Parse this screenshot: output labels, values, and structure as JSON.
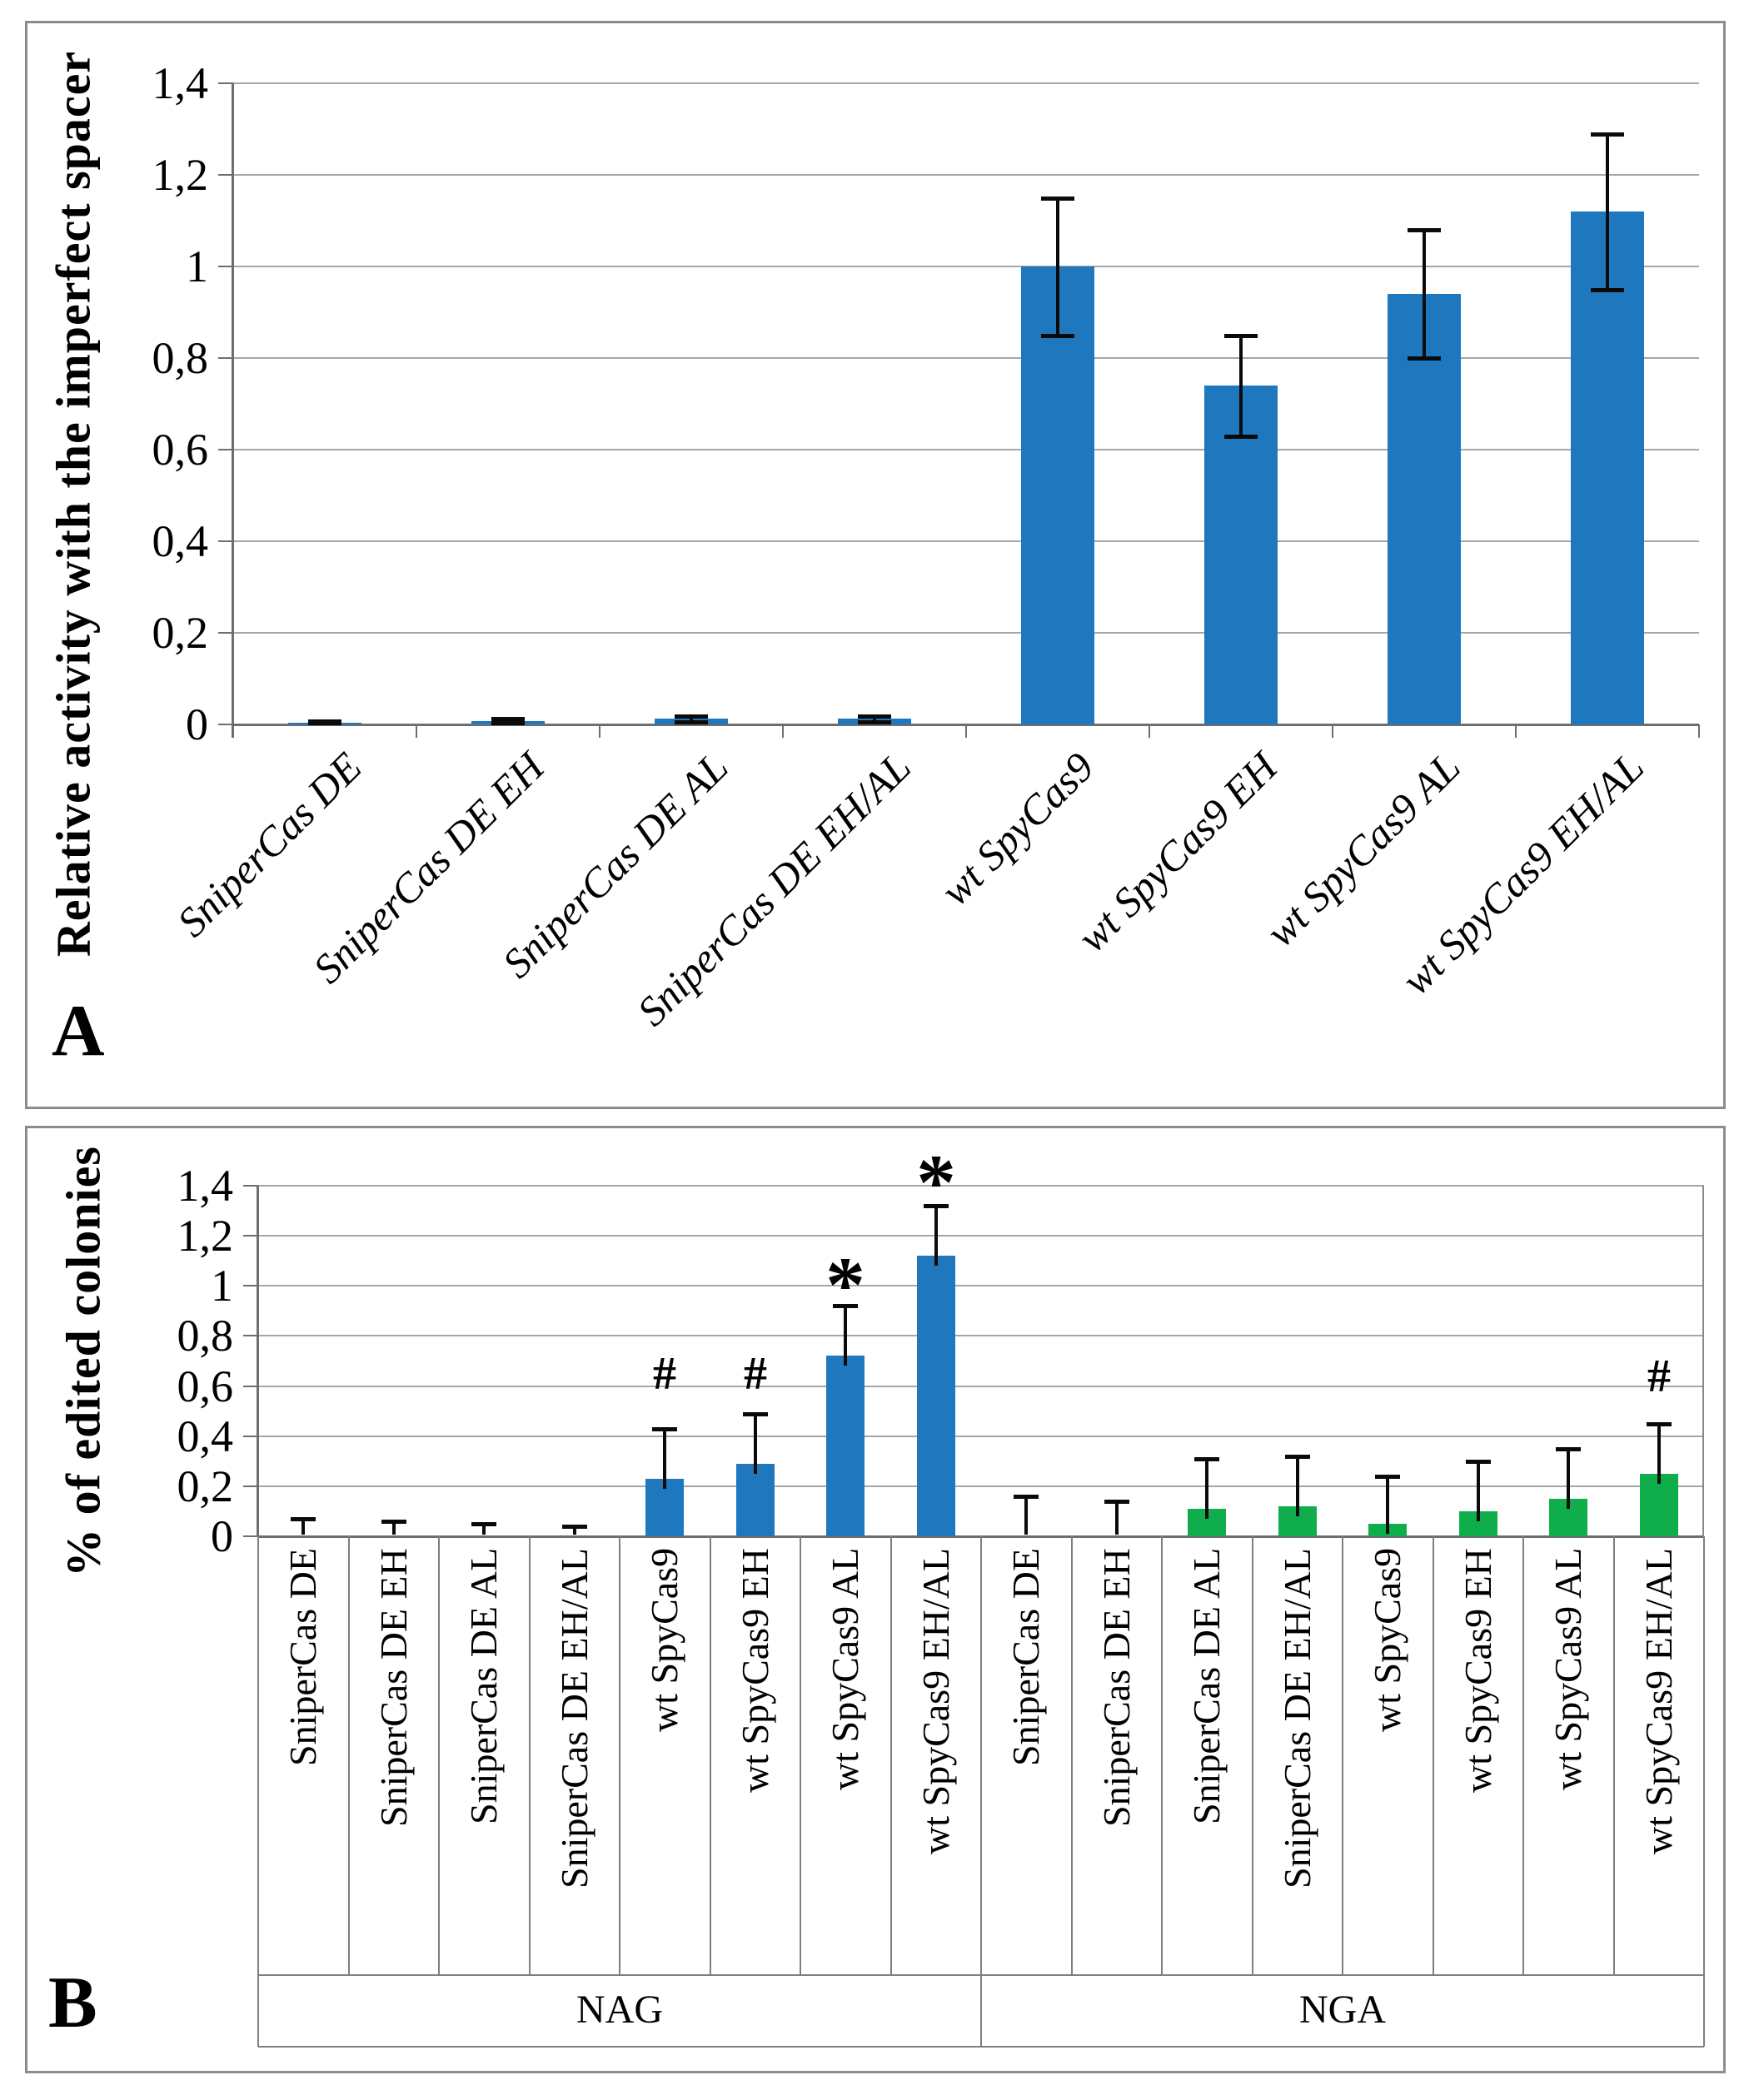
{
  "figure": {
    "panel_a_letter": "A",
    "panel_b_letter": "B"
  },
  "chart_data": [
    {
      "type": "bar",
      "panel_letter": "A",
      "title": "",
      "xlabel": "",
      "ylabel": "Relative activity with the imperfect spacer",
      "ylim": [
        0,
        1.4
      ],
      "ytick_step": 0.2,
      "yticks": [
        "0",
        "0,2",
        "0,4",
        "0,6",
        "0,8",
        "1",
        "1,2",
        "1,4"
      ],
      "grid": true,
      "legend": "none",
      "bar_color": "#1F78BE",
      "error_bar_color": "#000000",
      "category_label_style": "diagonal-italic",
      "categories": [
        "SniperCas DE",
        "SniperCas DE EH",
        "SniperCas DE AL",
        "SniperCas DE EH/AL",
        "wt SpyCas9",
        "wt SpyCas9 EH",
        "wt SpyCas9 AL",
        "wt SpyCas9 EH/AL"
      ],
      "values": [
        0.003,
        0.008,
        0.012,
        0.012,
        1.0,
        0.74,
        0.94,
        1.12
      ],
      "errors": [
        0.004,
        0.005,
        0.006,
        0.006,
        0.15,
        0.11,
        0.14,
        0.17
      ]
    },
    {
      "type": "bar",
      "panel_letter": "B",
      "title": "",
      "xlabel": "",
      "ylabel": "% of edited colonies",
      "ylim": [
        0,
        1.4
      ],
      "ytick_step": 0.2,
      "yticks": [
        "0",
        "0,2",
        "0,4",
        "0,6",
        "0,8",
        "1",
        "1,2",
        "1,4"
      ],
      "grid": true,
      "legend": "none",
      "error_bar_color": "#000000",
      "category_label_style": "vertical",
      "groups": [
        {
          "label": "NAG",
          "bar_color": "#1F78BE",
          "categories": [
            "SniperCas DE",
            "SniperCas DE EH",
            "SniperCas DE AL",
            "SniperCas DE EH/AL",
            "wt SpyCas9",
            "wt SpyCas9 EH",
            "wt SpyCas9 AL",
            "wt SpyCas9 EH/AL"
          ],
          "values": [
            0,
            0,
            0,
            0,
            0.23,
            0.29,
            0.72,
            1.12
          ],
          "errors": [
            0.07,
            0.06,
            0.05,
            0.04,
            0.2,
            0.2,
            0.2,
            0.2
          ]
        },
        {
          "label": "NGA",
          "bar_color": "#0FAD4C",
          "categories": [
            "SniperCas DE",
            "SniperCas DE EH",
            "SniperCas DE AL",
            "SniperCas DE EH/AL",
            "wt SpyCas9",
            "wt SpyCas9 EH",
            "wt SpyCas9 AL",
            "wt SpyCas9 EH/AL"
          ],
          "values": [
            0,
            0,
            0.11,
            0.12,
            0.05,
            0.1,
            0.15,
            0.25
          ],
          "errors": [
            0.16,
            0.14,
            0.2,
            0.2,
            0.19,
            0.2,
            0.2,
            0.2
          ]
        }
      ],
      "annotations": [
        {
          "group": 0,
          "index": 4,
          "symbol": "#",
          "y": 0.67
        },
        {
          "group": 0,
          "index": 5,
          "symbol": "#",
          "y": 0.67
        },
        {
          "group": 0,
          "index": 6,
          "symbol": "*",
          "y": 1.06
        },
        {
          "group": 0,
          "index": 7,
          "symbol": "*",
          "y": 1.47
        },
        {
          "group": 1,
          "index": 7,
          "symbol": "#",
          "y": 0.66
        }
      ]
    }
  ]
}
